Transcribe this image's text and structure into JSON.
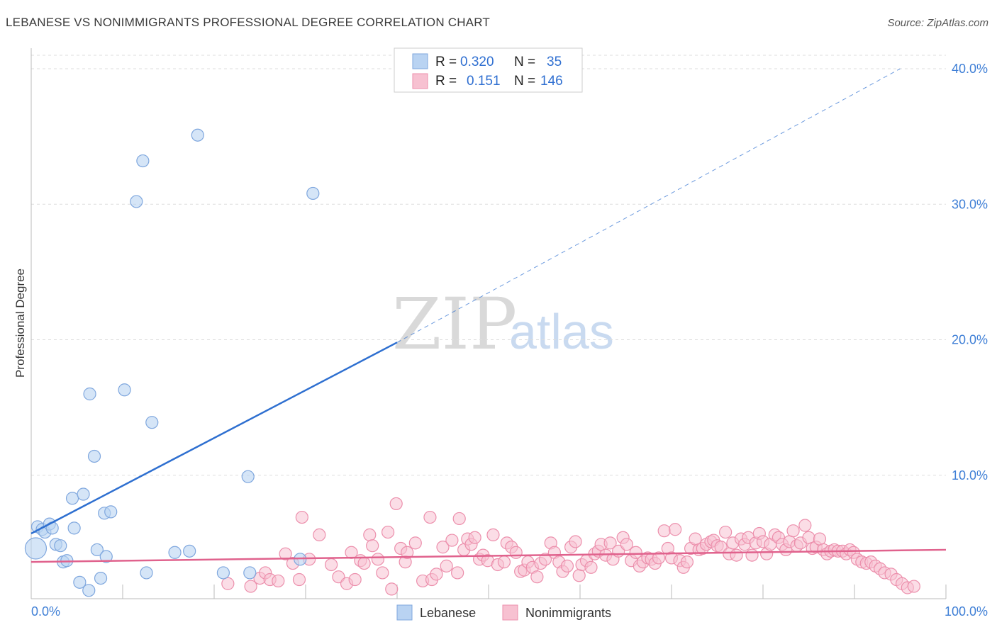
{
  "title": "LEBANESE VS NONIMMIGRANTS PROFESSIONAL DEGREE CORRELATION CHART",
  "source": "Source: ZipAtlas.com",
  "watermark": {
    "zip": "ZIP",
    "atlas": "atlas"
  },
  "colors": {
    "blue_fill": "#b9d3f2",
    "blue_stroke": "#7fa7de",
    "blue_line": "#2e6fd0",
    "pink_fill": "#f7c1d1",
    "pink_stroke": "#ec8fac",
    "pink_line": "#e0628d",
    "grid": "#dddddd",
    "tick_text": "#3f7fd6"
  },
  "legend": {
    "rows": [
      {
        "r_label": "R =",
        "r_value": "0.320",
        "n_label": "N =",
        "n_value": "35"
      },
      {
        "r_label": "R =",
        "r_value": "0.151",
        "n_label": "N =",
        "n_value": "146"
      }
    ]
  },
  "chart_data": {
    "type": "scatter",
    "title": "LEBANESE VS NONIMMIGRANTS PROFESSIONAL DEGREE CORRELATION CHART",
    "xlabel": "",
    "ylabel": "Professional Degree",
    "xlim": [
      0,
      100
    ],
    "ylim": [
      0,
      40
    ],
    "x_tick_labels": [
      "0.0%",
      "100.0%"
    ],
    "y_ticks": [
      10,
      20,
      30,
      40
    ],
    "y_tick_labels": [
      "10.0%",
      "20.0%",
      "30.0%",
      "40.0%"
    ],
    "grid": true,
    "series": [
      {
        "name": "Lebanese",
        "r": 0.32,
        "n": 35,
        "trend": {
          "x0": 0,
          "y0": 5.7,
          "x1": 40,
          "y1": 19.8,
          "dashed_to_x": 95,
          "dashed_to_y": 40.0
        },
        "points": [
          [
            0.5,
            4.6
          ],
          [
            0.7,
            6.2
          ],
          [
            1.2,
            6.0
          ],
          [
            1.5,
            5.8
          ],
          [
            2.0,
            6.4
          ],
          [
            2.3,
            6.1
          ],
          [
            2.7,
            4.9
          ],
          [
            3.2,
            4.8
          ],
          [
            3.5,
            3.6
          ],
          [
            3.9,
            3.7
          ],
          [
            4.5,
            8.3
          ],
          [
            4.7,
            6.1
          ],
          [
            5.3,
            2.1
          ],
          [
            5.7,
            8.6
          ],
          [
            6.3,
            1.5
          ],
          [
            6.4,
            16.0
          ],
          [
            6.9,
            11.4
          ],
          [
            7.2,
            4.5
          ],
          [
            7.6,
            2.4
          ],
          [
            8.0,
            7.2
          ],
          [
            8.2,
            4.0
          ],
          [
            8.7,
            7.3
          ],
          [
            10.2,
            16.3
          ],
          [
            11.5,
            30.2
          ],
          [
            12.2,
            33.2
          ],
          [
            12.6,
            2.8
          ],
          [
            13.2,
            13.9
          ],
          [
            15.7,
            4.3
          ],
          [
            17.3,
            4.4
          ],
          [
            18.2,
            35.1
          ],
          [
            21.0,
            2.8
          ],
          [
            23.7,
            9.9
          ],
          [
            23.9,
            2.8
          ],
          [
            29.4,
            3.8
          ],
          [
            30.8,
            30.8
          ]
        ]
      },
      {
        "name": "Nonimmigrants",
        "r": 0.151,
        "n": 146,
        "trend": {
          "x0": 0,
          "y0": 3.6,
          "x1": 100,
          "y1": 4.5
        },
        "points": [
          [
            21.5,
            2.0
          ],
          [
            24.0,
            1.8
          ],
          [
            25.0,
            2.4
          ],
          [
            25.6,
            2.8
          ],
          [
            26.1,
            2.3
          ],
          [
            27.0,
            2.2
          ],
          [
            27.8,
            4.2
          ],
          [
            28.6,
            3.5
          ],
          [
            29.3,
            2.3
          ],
          [
            29.6,
            6.9
          ],
          [
            30.4,
            3.8
          ],
          [
            31.5,
            5.6
          ],
          [
            32.8,
            3.4
          ],
          [
            33.6,
            2.5
          ],
          [
            34.5,
            2.0
          ],
          [
            35.0,
            4.3
          ],
          [
            35.4,
            2.3
          ],
          [
            36.0,
            3.7
          ],
          [
            36.4,
            3.5
          ],
          [
            37.0,
            5.6
          ],
          [
            37.3,
            4.8
          ],
          [
            37.9,
            3.8
          ],
          [
            38.4,
            2.8
          ],
          [
            39.0,
            5.8
          ],
          [
            39.4,
            1.6
          ],
          [
            39.9,
            7.9
          ],
          [
            40.4,
            4.6
          ],
          [
            40.9,
            3.6
          ],
          [
            41.1,
            4.3
          ],
          [
            42.0,
            5.0
          ],
          [
            42.8,
            2.2
          ],
          [
            43.6,
            6.9
          ],
          [
            43.8,
            2.3
          ],
          [
            44.3,
            2.7
          ],
          [
            45.0,
            4.7
          ],
          [
            45.4,
            3.3
          ],
          [
            46.0,
            5.2
          ],
          [
            46.6,
            2.8
          ],
          [
            46.8,
            6.8
          ],
          [
            47.3,
            4.5
          ],
          [
            47.7,
            5.3
          ],
          [
            48.1,
            4.9
          ],
          [
            48.5,
            5.4
          ],
          [
            49.0,
            3.8
          ],
          [
            49.4,
            4.1
          ],
          [
            49.9,
            3.7
          ],
          [
            50.5,
            5.6
          ],
          [
            51.0,
            3.4
          ],
          [
            51.7,
            3.6
          ],
          [
            52.0,
            5.0
          ],
          [
            52.5,
            4.7
          ],
          [
            53.0,
            4.3
          ],
          [
            53.5,
            2.9
          ],
          [
            53.9,
            3.0
          ],
          [
            54.3,
            3.6
          ],
          [
            54.8,
            3.2
          ],
          [
            55.3,
            2.5
          ],
          [
            55.7,
            3.5
          ],
          [
            56.2,
            3.8
          ],
          [
            56.8,
            5.0
          ],
          [
            57.2,
            4.3
          ],
          [
            57.7,
            3.6
          ],
          [
            58.1,
            2.9
          ],
          [
            58.6,
            3.3
          ],
          [
            59.0,
            4.7
          ],
          [
            59.5,
            5.1
          ],
          [
            59.9,
            2.6
          ],
          [
            60.2,
            3.4
          ],
          [
            60.7,
            3.7
          ],
          [
            61.2,
            3.2
          ],
          [
            61.6,
            4.2
          ],
          [
            62.0,
            4.4
          ],
          [
            62.3,
            4.9
          ],
          [
            62.8,
            4.1
          ],
          [
            63.3,
            5.0
          ],
          [
            63.6,
            3.8
          ],
          [
            64.2,
            4.4
          ],
          [
            64.7,
            5.4
          ],
          [
            65.1,
            4.9
          ],
          [
            65.6,
            3.7
          ],
          [
            66.1,
            4.3
          ],
          [
            66.5,
            3.3
          ],
          [
            66.9,
            3.6
          ],
          [
            67.4,
            3.9
          ],
          [
            67.8,
            3.8
          ],
          [
            68.2,
            3.5
          ],
          [
            68.6,
            3.9
          ],
          [
            69.2,
            5.9
          ],
          [
            69.6,
            4.6
          ],
          [
            70.0,
            3.9
          ],
          [
            70.4,
            6.0
          ],
          [
            70.9,
            3.7
          ],
          [
            71.3,
            3.2
          ],
          [
            71.7,
            3.6
          ],
          [
            72.1,
            4.6
          ],
          [
            72.6,
            5.3
          ],
          [
            73.0,
            4.5
          ],
          [
            73.4,
            4.6
          ],
          [
            73.8,
            4.9
          ],
          [
            74.3,
            5.1
          ],
          [
            74.6,
            5.2
          ],
          [
            75.0,
            4.8
          ],
          [
            75.4,
            4.7
          ],
          [
            75.9,
            5.8
          ],
          [
            76.3,
            4.2
          ],
          [
            76.7,
            5.0
          ],
          [
            77.1,
            4.1
          ],
          [
            77.6,
            5.3
          ],
          [
            78.0,
            4.9
          ],
          [
            78.4,
            5.4
          ],
          [
            78.8,
            4.1
          ],
          [
            79.2,
            5.0
          ],
          [
            79.6,
            5.7
          ],
          [
            80.0,
            5.1
          ],
          [
            80.4,
            4.2
          ],
          [
            80.8,
            4.9
          ],
          [
            81.3,
            5.6
          ],
          [
            81.7,
            5.4
          ],
          [
            82.1,
            4.9
          ],
          [
            82.5,
            4.5
          ],
          [
            82.9,
            5.1
          ],
          [
            83.3,
            5.9
          ],
          [
            83.7,
            4.8
          ],
          [
            84.1,
            5.0
          ],
          [
            84.6,
            6.3
          ],
          [
            85.0,
            5.4
          ],
          [
            85.4,
            4.6
          ],
          [
            85.8,
            4.7
          ],
          [
            86.2,
            5.3
          ],
          [
            86.6,
            4.5
          ],
          [
            87.0,
            4.2
          ],
          [
            87.4,
            4.4
          ],
          [
            87.8,
            4.5
          ],
          [
            88.2,
            4.4
          ],
          [
            88.7,
            4.4
          ],
          [
            89.1,
            4.2
          ],
          [
            89.5,
            4.5
          ],
          [
            89.9,
            4.3
          ],
          [
            90.3,
            3.8
          ],
          [
            90.8,
            3.6
          ],
          [
            91.3,
            3.5
          ],
          [
            91.8,
            3.6
          ],
          [
            92.3,
            3.3
          ],
          [
            92.8,
            3.1
          ],
          [
            93.3,
            2.8
          ],
          [
            94.0,
            2.7
          ],
          [
            94.6,
            2.3
          ],
          [
            95.2,
            2.0
          ],
          [
            95.8,
            1.7
          ],
          [
            96.5,
            1.8
          ]
        ]
      }
    ]
  },
  "bottom_legend": [
    {
      "label": "Lebanese"
    },
    {
      "label": "Nonimmigrants"
    }
  ]
}
